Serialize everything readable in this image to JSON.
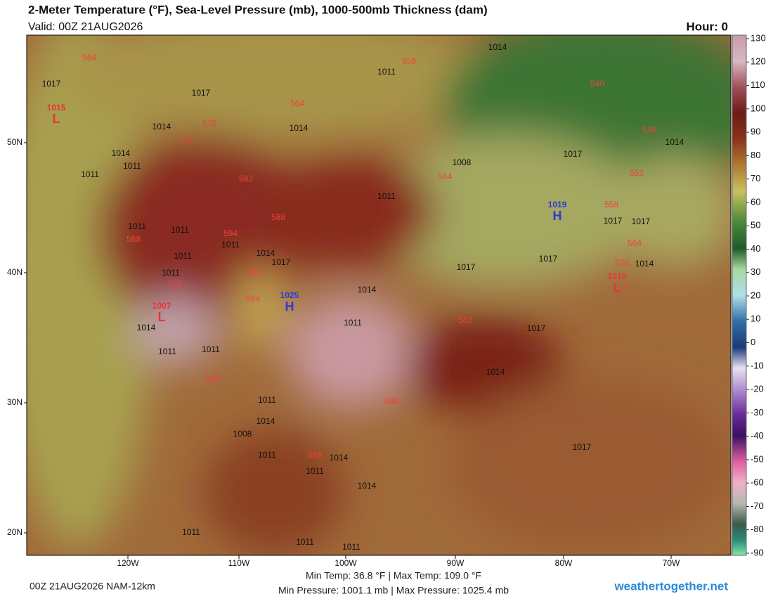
{
  "header": {
    "title": "2-Meter Temperature (°F), Sea-Level Pressure (mb), 1000-500mb Thickness (dam)",
    "valid": "Valid: 00Z 21AUG2026",
    "hour": "Hour: 0"
  },
  "map": {
    "lat_labels": [
      "50N",
      "40N",
      "30N",
      "20N"
    ],
    "lon_labels": [
      "120W",
      "110W",
      "100W",
      "90W",
      "80W",
      "70W"
    ],
    "pressure_labels": [
      1017,
      1017,
      1014,
      1014,
      1011,
      1014,
      1014,
      1011,
      1011,
      1011,
      1017,
      1011,
      1011,
      1011,
      1014,
      1017,
      1011,
      1011,
      1017,
      1017,
      1014,
      1014,
      1017,
      1017,
      1011,
      1014,
      1011,
      1011,
      1017,
      1014,
      1011,
      1014,
      1008,
      1011,
      1014,
      1011,
      1014,
      1017,
      1011,
      1011,
      1011,
      1014,
      1008
    ],
    "thickness_labels": [
      564,
      558,
      540,
      564,
      570,
      576,
      546,
      552,
      582,
      588,
      588,
      594,
      594,
      594,
      594,
      588,
      588,
      558,
      564,
      570,
      576,
      582,
      588,
      564
    ],
    "centers": [
      {
        "letter": "L",
        "pressure": 1015
      },
      {
        "letter": "L",
        "pressure": 1007
      },
      {
        "letter": "H",
        "pressure": 1019
      },
      {
        "letter": "H",
        "pressure": 1025
      },
      {
        "letter": "L",
        "pressure": 1010
      }
    ]
  },
  "colorbar": {
    "ticks": [
      130,
      120,
      110,
      100,
      90,
      80,
      70,
      60,
      50,
      40,
      30,
      20,
      10,
      0,
      -10,
      -20,
      -30,
      -40,
      -50,
      -60,
      -70,
      -80,
      -90
    ]
  },
  "footer": {
    "run": "00Z 21AUG2026 NAM-12km",
    "temp_stats": "Min Temp:  36.8 °F | Max Temp: 109.0 °F",
    "pressure_stats": "Min Pressure: 1001.1 mb | Max Pressure: 1025.4 mb",
    "site": "weathertogether.net"
  }
}
